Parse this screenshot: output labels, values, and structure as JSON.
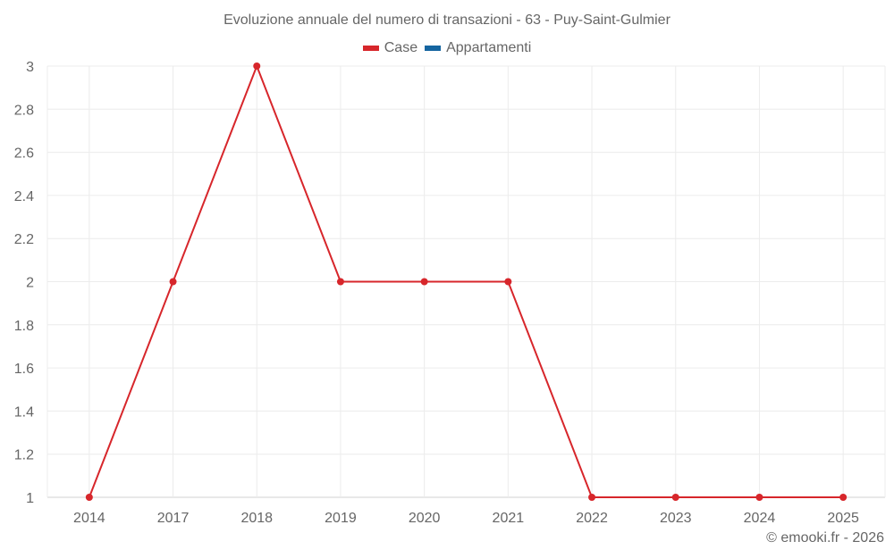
{
  "chart_data": {
    "type": "line",
    "title": "Evoluzione annuale del numero di transazioni - 63 - Puy-Saint-Gulmier",
    "xlabel": "",
    "ylabel": "",
    "categories": [
      "2014",
      "2017",
      "2018",
      "2019",
      "2020",
      "2021",
      "2022",
      "2023",
      "2024",
      "2025"
    ],
    "series": [
      {
        "name": "Case",
        "color": "#d7262b",
        "values": [
          1,
          2,
          3,
          2,
          2,
          2,
          1,
          1,
          1,
          1
        ]
      },
      {
        "name": "Appartamenti",
        "color": "#1565a0",
        "values": []
      }
    ],
    "ylim": [
      1,
      3
    ],
    "yticks": [
      "1",
      "1.2",
      "1.4",
      "1.6",
      "1.8",
      "2",
      "2.2",
      "2.4",
      "2.6",
      "2.8",
      "3"
    ],
    "grid": true,
    "legend_position": "top"
  },
  "header": {
    "title": "Evoluzione annuale del numero di transazioni - 63 - Puy-Saint-Gulmier"
  },
  "legend": {
    "items": [
      {
        "label": "Case",
        "color": "#d7262b"
      },
      {
        "label": "Appartamenti",
        "color": "#1565a0"
      }
    ]
  },
  "footer": {
    "credit": "© emooki.fr - 2026"
  }
}
